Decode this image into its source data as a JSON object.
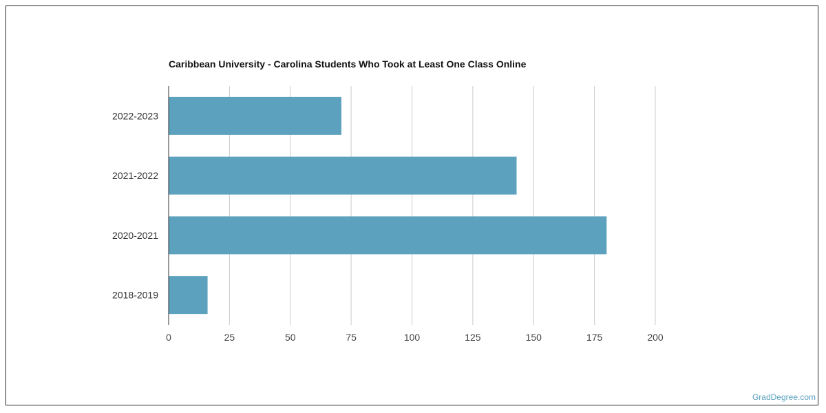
{
  "chart_data": {
    "type": "bar",
    "orientation": "horizontal",
    "title": "Caribbean University - Carolina Students Who Took at Least One Class Online",
    "categories": [
      "2022-2023",
      "2021-2022",
      "2020-2021",
      "2018-2019"
    ],
    "values": [
      71,
      143,
      180,
      16
    ],
    "xlabel": "",
    "ylabel": "",
    "xlim": [
      0,
      200
    ],
    "xticks": [
      0,
      25,
      50,
      75,
      100,
      125,
      150,
      175,
      200
    ],
    "grid": true,
    "legend": "none",
    "bar_color": "#5ca1bd"
  },
  "credit": "GradDegree.com"
}
